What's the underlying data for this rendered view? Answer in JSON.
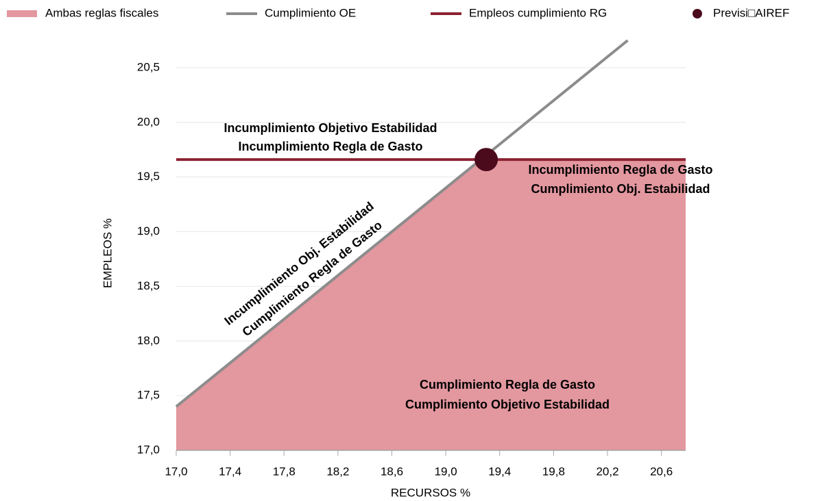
{
  "chart_data": {
    "type": "line",
    "xlabel": "RECURSOS %",
    "ylabel": "EMPLEOS %",
    "xlim": [
      17,
      20.78
    ],
    "ylim": [
      17,
      20.75
    ],
    "xticks": [
      {
        "value": 17,
        "label": "17,0"
      },
      {
        "value": 17.4,
        "label": "17,4"
      },
      {
        "value": 17.8,
        "label": "17,8"
      },
      {
        "value": 18.2,
        "label": "18,2"
      },
      {
        "value": 18.6,
        "label": "18,6"
      },
      {
        "value": 19,
        "label": "19,0"
      },
      {
        "value": 19.4,
        "label": "19,4"
      },
      {
        "value": 19.8,
        "label": "19,8"
      },
      {
        "value": 20.2,
        "label": "20,2"
      },
      {
        "value": 20.6,
        "label": "20,6"
      }
    ],
    "yticks": [
      {
        "value": 17,
        "label": "17,0"
      },
      {
        "value": 17.5,
        "label": "17,5"
      },
      {
        "value": 18,
        "label": "18,0"
      },
      {
        "value": 18.5,
        "label": "18,5"
      },
      {
        "value": 19,
        "label": "19,0"
      },
      {
        "value": 19.5,
        "label": "19,5"
      },
      {
        "value": 20,
        "label": "20,0"
      },
      {
        "value": 20.5,
        "label": "20,5"
      }
    ],
    "grid": true,
    "series": [
      {
        "name": "Ambas reglas fiscales",
        "kind": "area",
        "color": "#e3979f",
        "x": [
          17,
          19.26,
          20.78
        ],
        "values": [
          17.4,
          19.66,
          19.66
        ]
      },
      {
        "name": "Cumplimiento OE",
        "kind": "line",
        "color": "#8c8c8c",
        "x": [
          17,
          20.35
        ],
        "values": [
          17.4,
          20.75
        ]
      },
      {
        "name": "Empleos cumplimiento RG",
        "kind": "line",
        "color": "#8b2232",
        "x": [
          17,
          20.78
        ],
        "values": [
          19.66,
          19.66
        ]
      },
      {
        "name": "Previsi□AIREF",
        "kind": "point",
        "color": "#4b0b1c",
        "x": [
          19.3
        ],
        "values": [
          19.66
        ]
      }
    ],
    "annotations": [
      [
        "Incumplimiento Objetivo Estabilidad",
        "Incumplimiento Regla de Gasto"
      ],
      [
        "Incumplimiento Regla de Gasto",
        "Cumplimiento Obj. Estabilidad"
      ],
      [
        "Cumplimiento Regla de Gasto",
        "Cumplimiento Objetivo Estabilidad"
      ],
      [
        "Incumplimiento Obj. Estabilidad",
        "Cumplimiento Regla de Gasto"
      ]
    ]
  }
}
